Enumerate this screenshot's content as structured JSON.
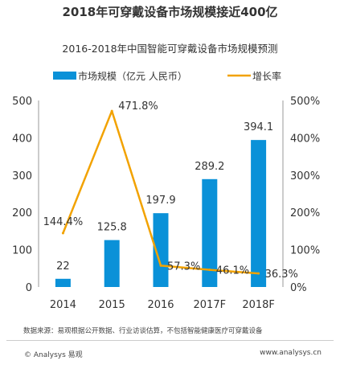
{
  "page_title": "2018年可穿戴设备市场规模接近400亿",
  "source_note": "数据来源：易观根据公开数据、行业访谈估算，不包括智能健康医疗可穿戴设备",
  "footer": {
    "copyright": "© Analysys 易观",
    "website": "www.analysys.cn"
  },
  "colors": {
    "bar": "#0a91d8",
    "line": "#f2a200",
    "text": "#333333",
    "axis": "#999999"
  },
  "chart_data": {
    "type": "bar",
    "title": "2016-2018年中国智能可穿戴设备市场规模预测",
    "categories": [
      "2014",
      "2015",
      "2016",
      "2017F",
      "2018F"
    ],
    "series": [
      {
        "name": "市场规模（亿元 人民币）",
        "type": "bar",
        "axis": "left",
        "values": [
          22,
          125.8,
          197.9,
          289.2,
          394.1
        ],
        "labels": [
          "22",
          "125.8",
          "197.9",
          "289.2",
          "394.1"
        ]
      },
      {
        "name": "增长率",
        "type": "line",
        "axis": "right",
        "values": [
          144.4,
          471.8,
          57.3,
          46.1,
          36.3
        ],
        "labels": [
          "144.4%",
          "471.8%",
          "57.3%",
          "46.1%",
          "36.3%"
        ]
      }
    ],
    "ylim": [
      0,
      500
    ],
    "yticks": [
      "0",
      "100",
      "200",
      "300",
      "400",
      "500"
    ],
    "y2lim": [
      0,
      500
    ],
    "y2ticks": [
      "0%",
      "100%",
      "200%",
      "300%",
      "400%",
      "500%"
    ],
    "legend_position": "top",
    "grid": false
  }
}
